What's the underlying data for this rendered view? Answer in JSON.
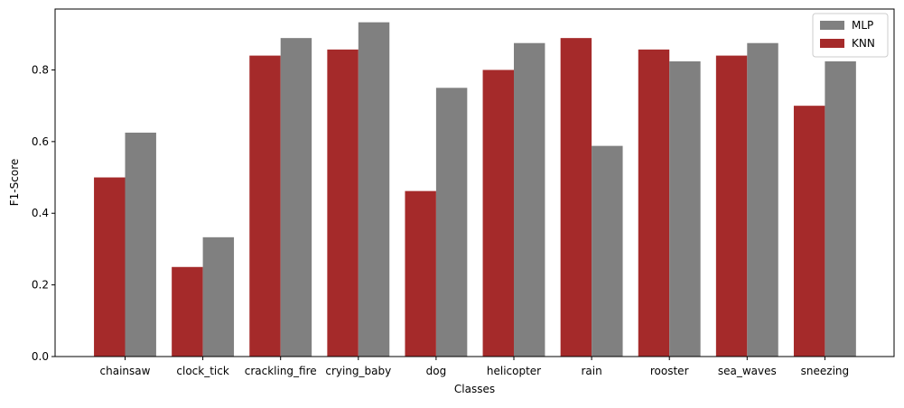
{
  "chart_data": {
    "type": "bar",
    "title": "",
    "xlabel": "Classes",
    "ylabel": "F1-Score",
    "ylim": [
      0,
      0.97
    ],
    "yticks": [
      "0.0",
      "0.2",
      "0.4",
      "0.6",
      "0.8"
    ],
    "categories": [
      "chainsaw",
      "clock_tick",
      "crackling_fire",
      "crying_baby",
      "dog",
      "helicopter",
      "rain",
      "rooster",
      "sea_waves",
      "sneezing"
    ],
    "series": [
      {
        "name": "KNN",
        "color": "#a52a2a",
        "values": [
          0.5,
          0.25,
          0.84,
          0.857,
          0.462,
          0.8,
          0.889,
          0.857,
          0.84,
          0.7
        ]
      },
      {
        "name": "MLP",
        "color": "#808080",
        "values": [
          0.625,
          0.333,
          0.889,
          0.933,
          0.75,
          0.875,
          0.588,
          0.824,
          0.875,
          0.824
        ]
      }
    ],
    "legend": {
      "position": "top-right",
      "entries": [
        "MLP",
        "KNN"
      ]
    },
    "grid": false
  }
}
